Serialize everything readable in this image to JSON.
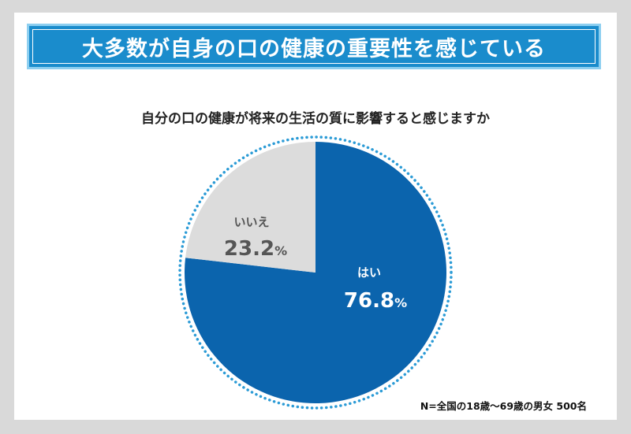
{
  "banner": {
    "title": "大多数が自身の口の健康の重要性を感じている"
  },
  "question": "自分の口の健康が将来の生活の質に影響すると感じますか",
  "note": "N=全国の18歳〜69歳の男女 500名",
  "colors": {
    "background": "#d9d9d9",
    "banner": "#1a8ccc",
    "yes": "#0b64ad",
    "no": "#dcdcdc",
    "dotted_ring": "#2b9bd6"
  },
  "chart_data": {
    "type": "pie",
    "title": "自分の口の健康が将来の生活の質に影響すると感じますか",
    "slices": [
      {
        "label": "はい",
        "value": 76.8,
        "display": "76.8%",
        "color": "#0b64ad"
      },
      {
        "label": "いいえ",
        "value": 23.2,
        "display": "23.2%",
        "color": "#dcdcdc"
      }
    ]
  }
}
